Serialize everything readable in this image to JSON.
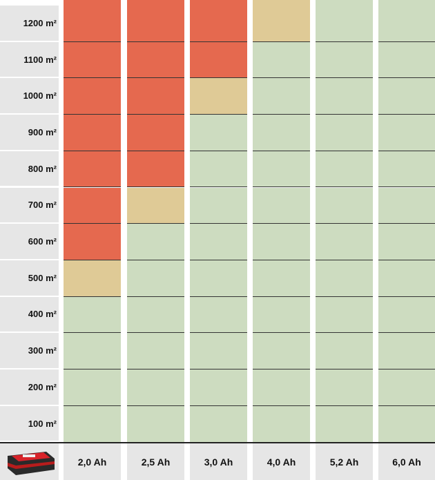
{
  "rows": [
    "1200 m²",
    "1100 m²",
    "1000 m²",
    "900 m²",
    "800 m²",
    "700 m²",
    "600 m²",
    "500 m²",
    "400 m²",
    "300 m²",
    "200 m²",
    "100 m²"
  ],
  "columns": [
    "2,0 Ah",
    "2,5 Ah",
    "3,0 Ah",
    "4,0 Ah",
    "5,2 Ah",
    "6,0 Ah"
  ],
  "cells": [
    [
      "#e5694f",
      "#e5694f",
      "#e5694f",
      "#dfca96",
      "#cddcc0",
      "#cddcc0"
    ],
    [
      "#e5694f",
      "#e5694f",
      "#e5694f",
      "#cddcc0",
      "#cddcc0",
      "#cddcc0"
    ],
    [
      "#e5694f",
      "#e5694f",
      "#dfca96",
      "#cddcc0",
      "#cddcc0",
      "#cddcc0"
    ],
    [
      "#e5694f",
      "#e5694f",
      "#cddcc0",
      "#cddcc0",
      "#cddcc0",
      "#cddcc0"
    ],
    [
      "#e5694f",
      "#e5694f",
      "#cddcc0",
      "#cddcc0",
      "#cddcc0",
      "#cddcc0"
    ],
    [
      "#e5694f",
      "#dfca96",
      "#cddcc0",
      "#cddcc0",
      "#cddcc0",
      "#cddcc0"
    ],
    [
      "#e5694f",
      "#cddcc0",
      "#cddcc0",
      "#cddcc0",
      "#cddcc0",
      "#cddcc0"
    ],
    [
      "#dfca96",
      "#cddcc0",
      "#cddcc0",
      "#cddcc0",
      "#cddcc0",
      "#cddcc0"
    ],
    [
      "#cddcc0",
      "#cddcc0",
      "#cddcc0",
      "#cddcc0",
      "#cddcc0",
      "#cddcc0"
    ],
    [
      "#cddcc0",
      "#cddcc0",
      "#cddcc0",
      "#cddcc0",
      "#cddcc0",
      "#cddcc0"
    ],
    [
      "#cddcc0",
      "#cddcc0",
      "#cddcc0",
      "#cddcc0",
      "#cddcc0",
      "#cddcc0"
    ],
    [
      "#cddcc0",
      "#cddcc0",
      "#cddcc0",
      "#cddcc0",
      "#cddcc0",
      "#cddcc0"
    ]
  ]
}
